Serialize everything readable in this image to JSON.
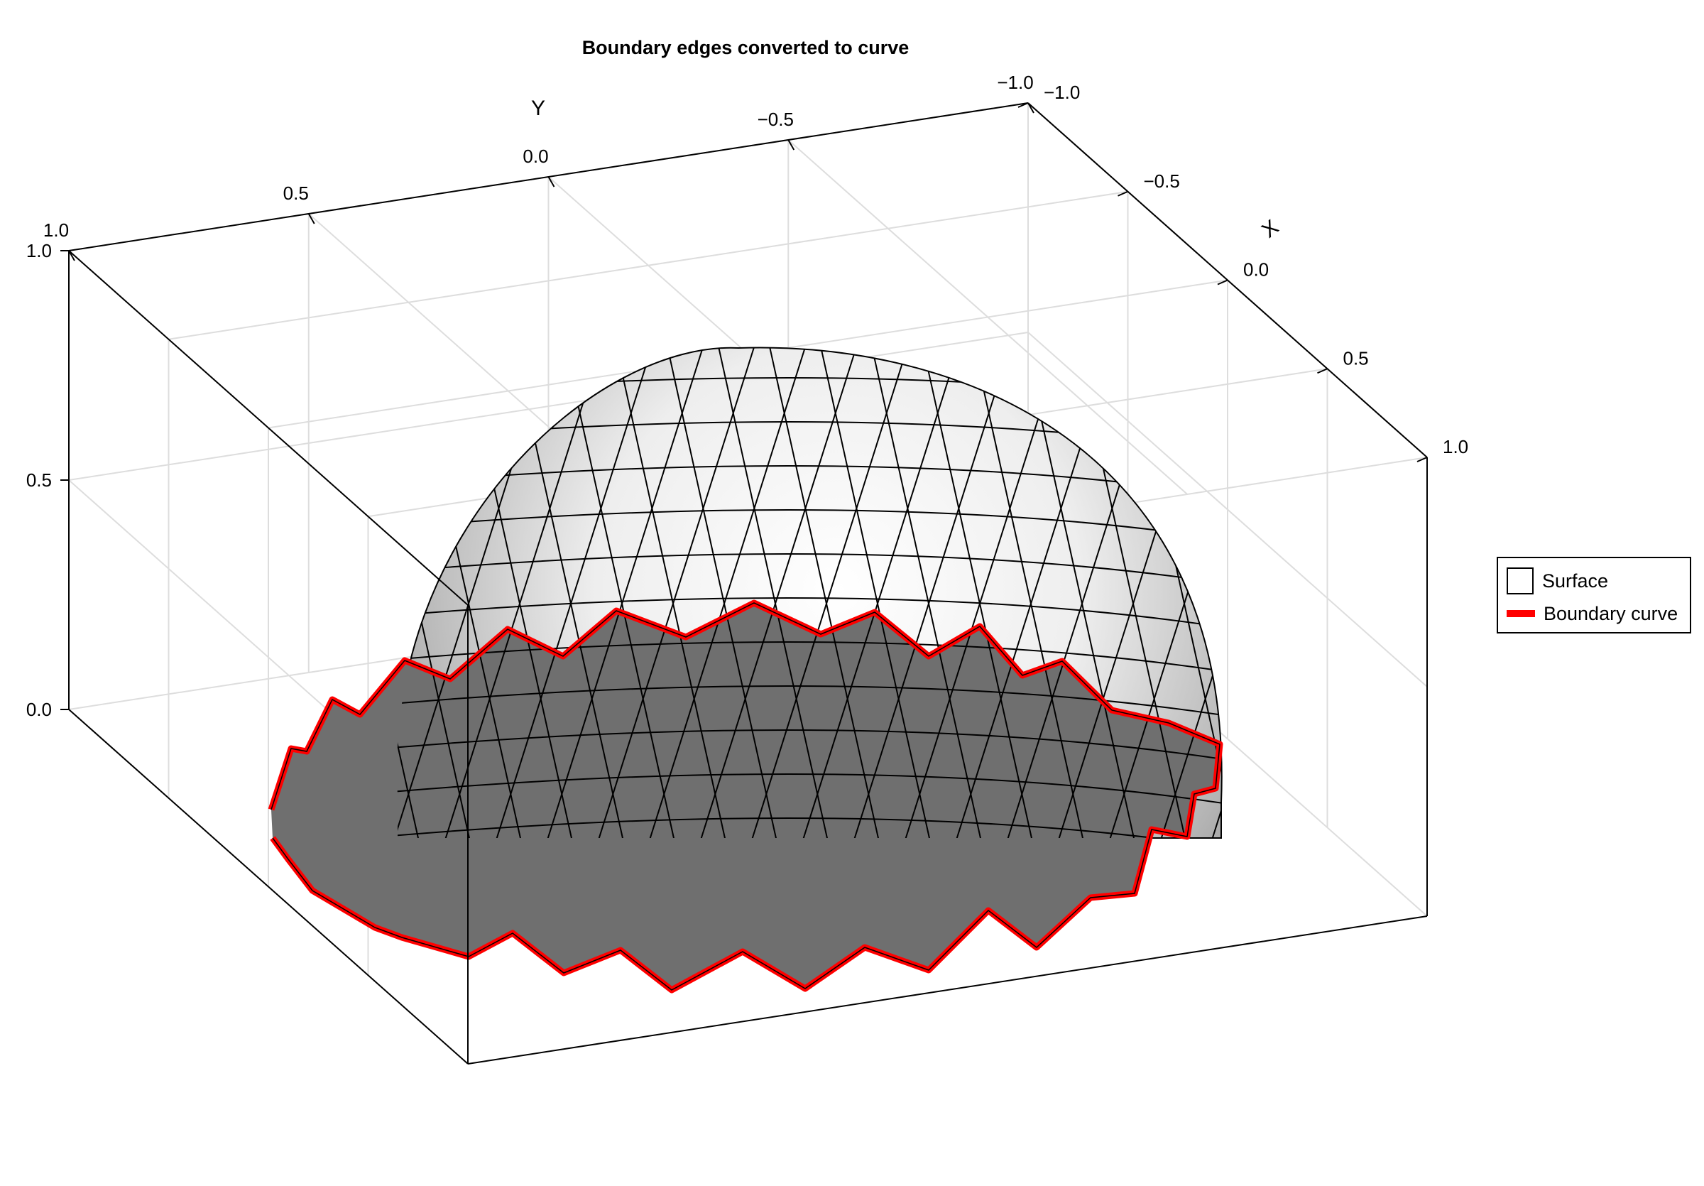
{
  "chart_data": {
    "type": "surface3d",
    "title": "Boundary edges converted to curve",
    "xlabel": "X",
    "ylabel": "Y",
    "zlabel": "",
    "xlim": [
      -1.0,
      1.0
    ],
    "ylim": [
      -1.0,
      1.0
    ],
    "zlim": [
      0.0,
      1.0
    ],
    "x_ticks": [
      "−1.0",
      "−0.5",
      "0.0",
      "0.5",
      "1.0"
    ],
    "y_ticks": [
      "1.0",
      "0.5",
      "0.0",
      "−0.5",
      "−1.0"
    ],
    "z_ticks": [
      "1.0",
      "0.5",
      "0.0"
    ],
    "grid": true,
    "legend_position": "right",
    "series": [
      {
        "name": "Surface",
        "kind": "triangulated hemisphere",
        "color": "#ffffff"
      },
      {
        "name": "Boundary curve",
        "kind": "curve",
        "color": "#ff0000"
      }
    ]
  },
  "colors": {
    "surface_light": "#fdfdfd",
    "surface_dark": "#6f6f6f",
    "edge": "#000000",
    "boundary": "#ff0000",
    "grid": "#dddddd"
  },
  "legend": {
    "surface_label": "Surface",
    "boundary_label": "Boundary curve"
  }
}
